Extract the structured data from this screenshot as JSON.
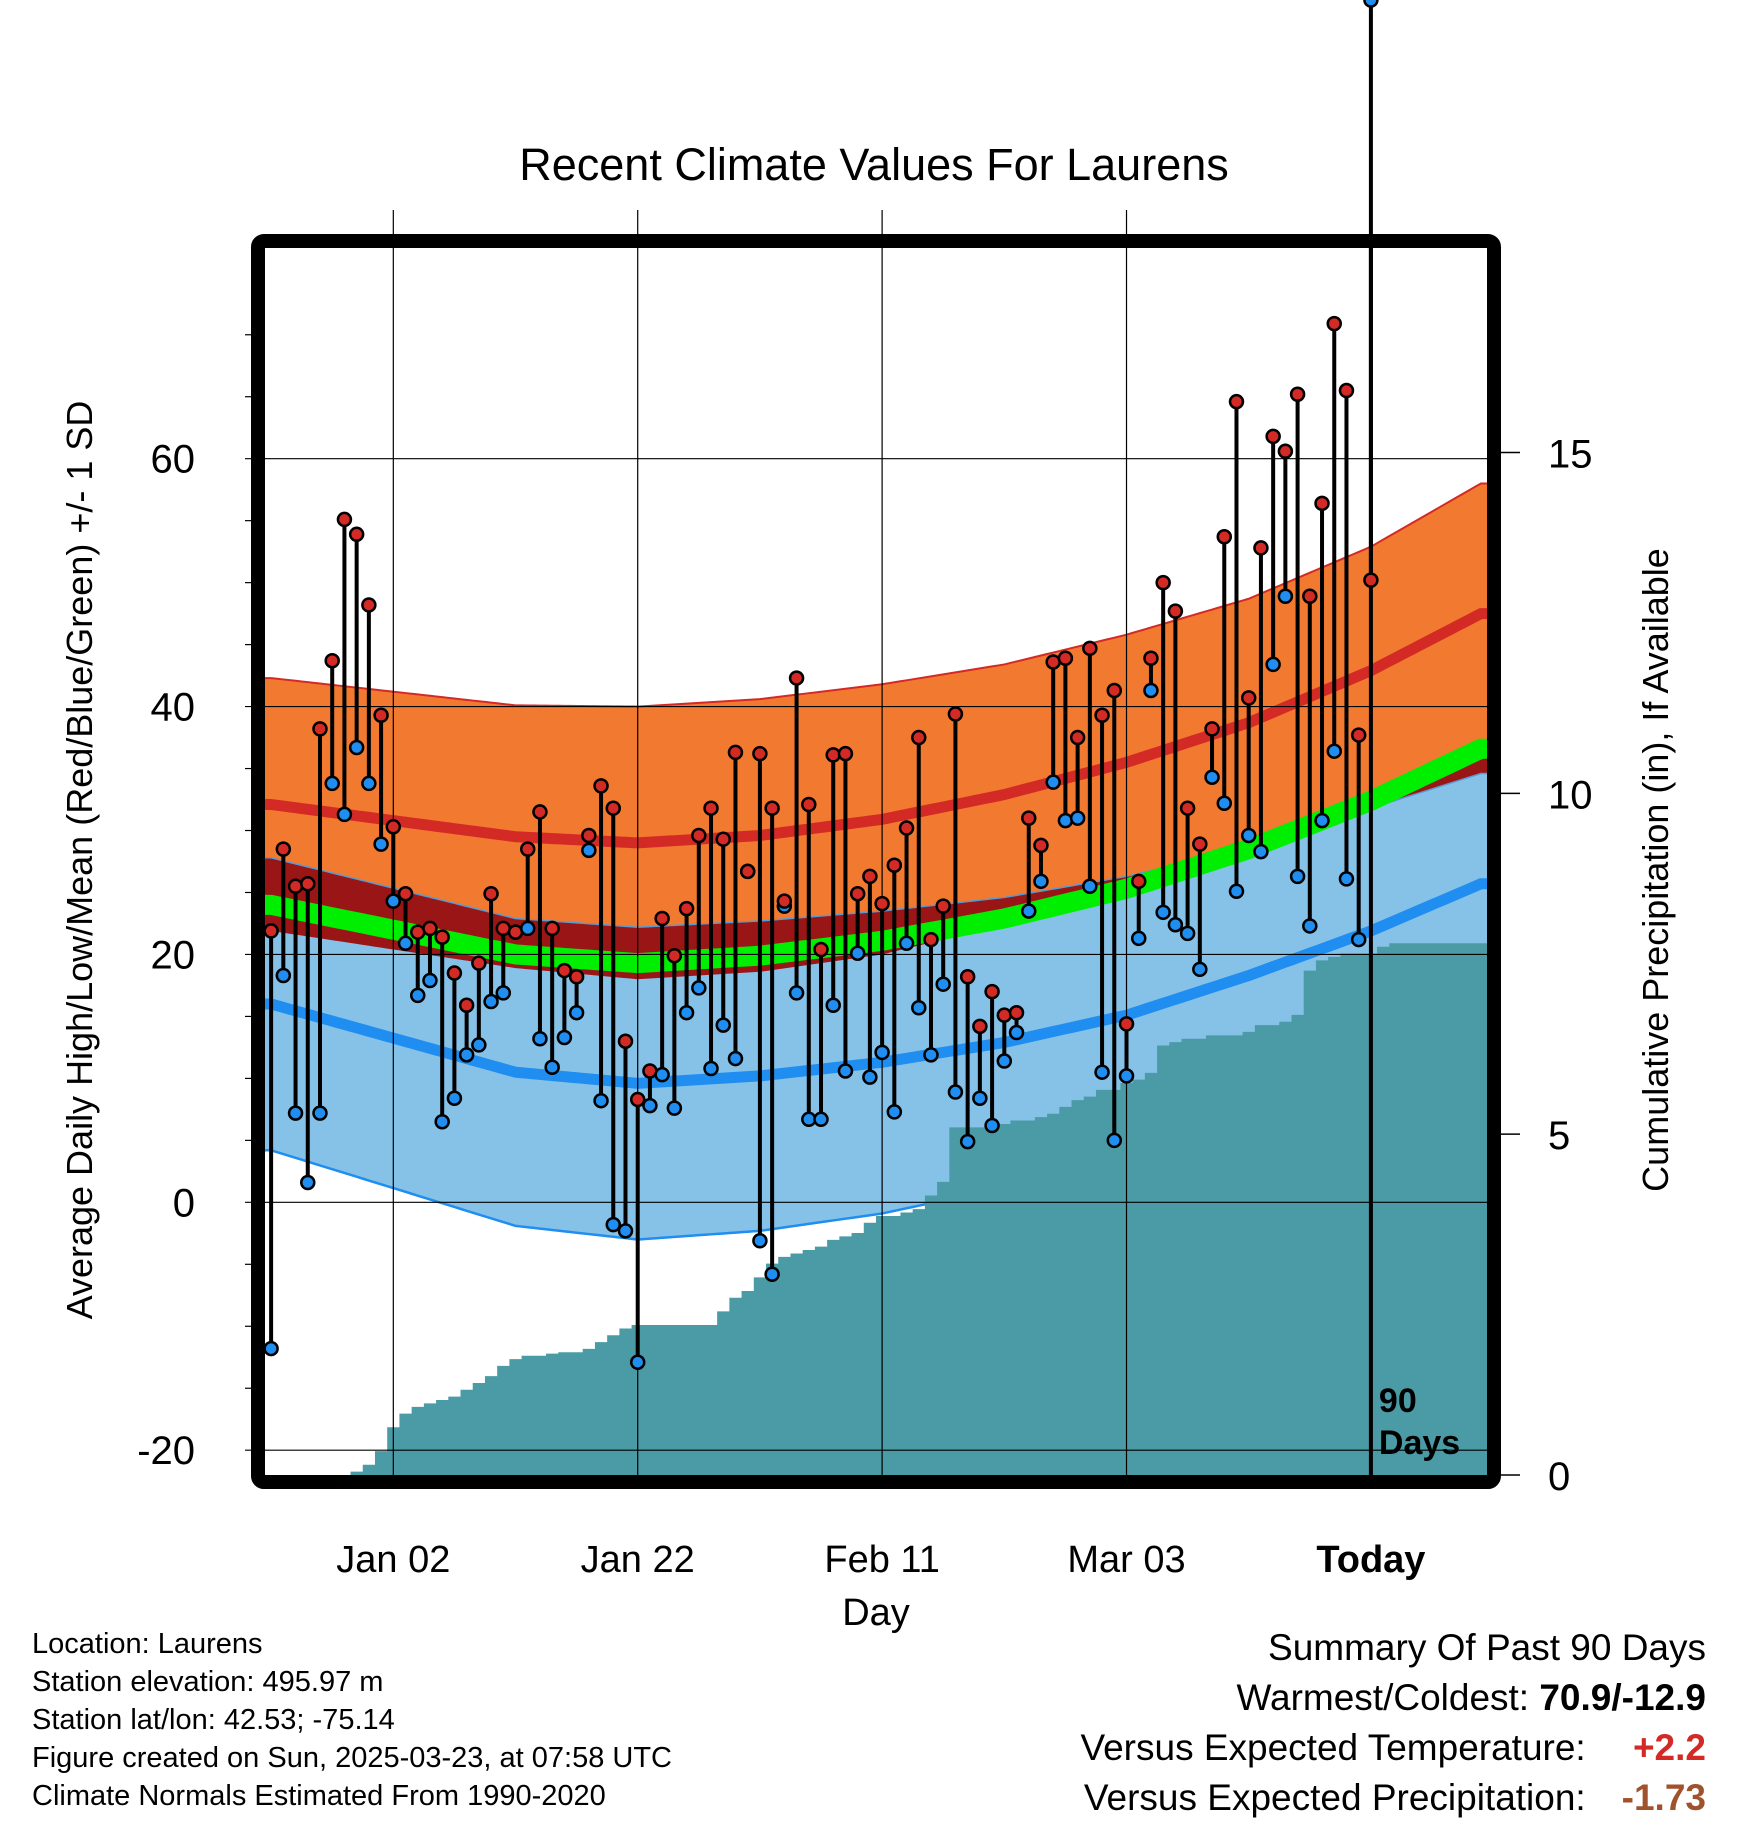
{
  "chart_data": {
    "type": "line",
    "title": "Recent Climate Values For Laurens",
    "xlabel": "Day",
    "ylabel": "Average Daily High/Low/Mean (Red/Blue/Green) +/- 1 SD",
    "y2label": "Cumulative Precipitation (in), If Available",
    "x_tick_labels": [
      "Jan 02",
      "Jan 22",
      "Feb 11",
      "Mar 03",
      "Today"
    ],
    "x_tick_days": [
      10,
      30,
      50,
      70,
      90
    ],
    "xlim": [
      -0.5,
      99.5
    ],
    "ylim": [
      -22,
      77
    ],
    "y_ticks": [
      -20,
      0,
      20,
      40,
      60
    ],
    "y2lim": [
      0,
      18
    ],
    "y2_ticks": [
      0,
      5,
      10,
      15
    ],
    "today_marker": "90\nDays",
    "grid": true,
    "colors": {
      "high_band": "#f27a30",
      "high_line": "#d42a26",
      "low_band": "#86c2e8",
      "low_line": "#1f8ef0",
      "mean_line": "#00ee00",
      "overlap": "#9a1616",
      "precip": "#4a9ba6",
      "high_dot": "#d42a26",
      "low_dot": "#1f8ef0"
    },
    "normals": {
      "day": [
        0,
        20,
        30,
        40,
        50,
        60,
        70,
        80,
        90,
        99
      ],
      "high_mean": [
        32.1,
        29.5,
        29.0,
        29.6,
        30.9,
        32.9,
        35.5,
        38.7,
        42.9,
        47.5
      ],
      "high_sd": [
        10.2,
        10.6,
        11.0,
        11.0,
        10.9,
        10.5,
        10.3,
        10.0,
        10.0,
        10.5
      ],
      "low_mean": [
        16.0,
        10.5,
        9.6,
        10.2,
        11.3,
        12.9,
        15.1,
        18.3,
        21.9,
        25.7
      ],
      "low_sd": [
        11.8,
        12.4,
        12.6,
        12.5,
        12.2,
        11.7,
        11.2,
        10.3,
        9.9,
        8.9
      ],
      "mean": [
        24.0,
        20.0,
        19.3,
        19.9,
        21.1,
        22.9,
        25.3,
        28.5,
        32.4,
        36.6
      ]
    },
    "series": [
      {
        "name": "Daily High",
        "values": [
          21.9,
          28.5,
          25.5,
          25.7,
          38.2,
          43.7,
          55.1,
          53.9,
          48.2,
          39.3,
          30.3,
          24.9,
          21.8,
          22.1,
          21.4,
          18.5,
          15.9,
          19.3,
          24.9,
          22.1,
          21.8,
          28.5,
          31.5,
          22.1,
          18.7,
          18.2,
          29.6,
          33.6,
          31.8,
          13.0,
          8.3,
          10.6,
          22.9,
          19.9,
          23.7,
          29.6,
          31.8,
          29.3,
          36.3,
          26.7,
          36.2,
          31.8,
          24.3,
          42.3,
          32.1,
          20.4,
          36.1,
          36.2,
          24.9,
          26.3,
          24.1,
          27.2,
          30.2,
          37.5,
          21.2,
          23.9,
          39.4,
          18.2,
          14.2,
          17.0,
          15.1,
          15.3,
          31.0,
          28.8,
          43.6,
          43.9,
          37.5,
          44.7,
          39.3,
          41.3,
          14.4,
          25.9,
          43.9,
          50.0,
          47.7,
          31.8,
          28.9,
          38.2,
          53.7,
          64.6,
          40.7,
          52.8,
          61.8,
          60.6,
          65.2,
          48.9,
          56.4,
          70.9,
          65.5,
          37.7,
          50.2
        ]
      },
      {
        "name": "Daily Low",
        "values": [
          -11.8,
          18.3,
          7.2,
          1.6,
          7.2,
          33.8,
          31.3,
          36.7,
          33.8,
          28.9,
          24.3,
          20.9,
          16.7,
          17.9,
          6.5,
          8.4,
          11.9,
          12.7,
          16.2,
          16.9,
          21.8,
          22.1,
          13.2,
          10.9,
          13.3,
          15.3,
          28.4,
          8.2,
          -1.8,
          -2.3,
          -12.9,
          7.8,
          10.3,
          7.6,
          15.3,
          17.3,
          10.8,
          14.3,
          11.6,
          26.7,
          -3.1,
          -5.8,
          23.9,
          16.9,
          6.7,
          6.7,
          15.9,
          10.6,
          20.1,
          10.1,
          12.1,
          7.3,
          20.9,
          15.7,
          11.9,
          17.6,
          8.9,
          4.9,
          8.4,
          6.2,
          11.4,
          13.7,
          23.5,
          25.9,
          33.9,
          30.8,
          31.0,
          25.5,
          10.5,
          5.0,
          10.2,
          21.3,
          41.3,
          23.4,
          22.4,
          21.7,
          18.8,
          34.3,
          32.2,
          25.1,
          29.6,
          28.3,
          43.4,
          48.9,
          26.3,
          22.3,
          30.8,
          36.4,
          26.1,
          21.2
        ]
      },
      {
        "name": "Cumulative Precipitation",
        "values": [
          0,
          0,
          0,
          0,
          0,
          0,
          0,
          0.05,
          0.15,
          0.35,
          0.7,
          0.9,
          1.0,
          1.05,
          1.1,
          1.15,
          1.25,
          1.35,
          1.45,
          1.6,
          1.7,
          1.75,
          1.75,
          1.78,
          1.8,
          1.8,
          1.85,
          1.95,
          2.05,
          2.15,
          2.2,
          2.2,
          2.2,
          2.2,
          2.2,
          2.2,
          2.2,
          2.4,
          2.6,
          2.7,
          2.9,
          3.1,
          3.2,
          3.25,
          3.3,
          3.35,
          3.45,
          3.5,
          3.55,
          3.7,
          3.8,
          3.8,
          3.85,
          3.9,
          4.1,
          4.3,
          5.1,
          5.1,
          5.1,
          5.1,
          5.15,
          5.2,
          5.2,
          5.25,
          5.3,
          5.4,
          5.5,
          5.55,
          5.65,
          5.65,
          5.75,
          5.8,
          5.9,
          6.3,
          6.35,
          6.4,
          6.4,
          6.45,
          6.45,
          6.45,
          6.5,
          6.6,
          6.6,
          6.65,
          6.75,
          7.4,
          7.55,
          7.6,
          7.65,
          7.65,
          7.65,
          7.75,
          7.8,
          7.8,
          7.8,
          7.8,
          7.8,
          7.8,
          7.8,
          7.8,
          7.8,
          7.8
        ]
      }
    ]
  },
  "info": {
    "location": "Location: Laurens",
    "elevation": "Station elevation: 495.97 m",
    "latlon": "Station lat/lon: 42.53; -75.14",
    "created": "Figure created on Sun, 2025-03-23, at 07:58 UTC",
    "normals": "Climate Normals Estimated From 1990-2020"
  },
  "summary": {
    "heading": "Summary Of Past 90 Days",
    "warm_label": "Warmest/Coldest: ",
    "warm_value": "70.9/-12.9",
    "temp_label": "Versus Expected Temperature: ",
    "temp_value": "+2.2",
    "temp_color": "#d42a26",
    "precip_label": "Versus Expected Precipitation: ",
    "precip_value": "-1.73",
    "precip_color": "#a0522d"
  }
}
